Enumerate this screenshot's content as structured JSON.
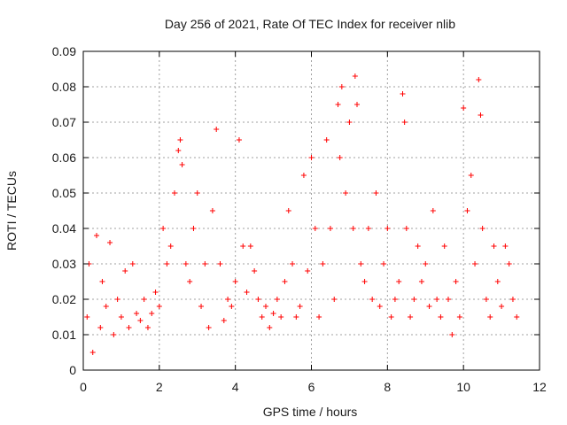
{
  "chart_data": {
    "type": "scatter",
    "title": "Day 256 of 2021, Rate Of TEC Index for receiver nlib",
    "xlabel": "GPS time / hours",
    "ylabel": "ROTI / TECUs",
    "xlim": [
      0,
      12
    ],
    "ylim": [
      0,
      0.09
    ],
    "x_ticks": [
      0,
      2,
      4,
      6,
      8,
      10,
      12
    ],
    "x_tick_labels": [
      "0",
      "2",
      "4",
      "6",
      "8",
      "10",
      "12"
    ],
    "y_ticks": [
      0,
      0.01,
      0.02,
      0.03,
      0.04,
      0.05,
      0.06,
      0.07,
      0.08,
      0.09
    ],
    "y_tick_labels": [
      "0",
      "0.01",
      "0.02",
      "0.03",
      "0.04",
      "0.05",
      "0.06",
      "0.07",
      "0.08",
      "0.09"
    ],
    "grid": true,
    "marker": "+",
    "marker_color": "#ff0000",
    "x_data_range": [
      0,
      11.5
    ],
    "series": [
      {
        "name": "ROTI",
        "x": [
          0.1,
          0.15,
          0.25,
          0.35,
          0.45,
          0.5,
          0.6,
          0.7,
          0.8,
          0.9,
          1.0,
          1.1,
          1.2,
          1.3,
          1.4,
          1.5,
          1.6,
          1.7,
          1.8,
          1.9,
          2.0,
          2.1,
          2.2,
          2.3,
          2.4,
          2.5,
          2.55,
          2.6,
          2.7,
          2.8,
          2.9,
          3.0,
          3.1,
          3.2,
          3.3,
          3.4,
          3.5,
          3.6,
          3.7,
          3.8,
          3.9,
          4.0,
          4.1,
          4.2,
          4.3,
          4.4,
          4.5,
          4.6,
          4.7,
          4.8,
          4.9,
          5.0,
          5.1,
          5.2,
          5.3,
          5.4,
          5.5,
          5.6,
          5.7,
          5.8,
          5.9,
          6.0,
          6.1,
          6.2,
          6.3,
          6.4,
          6.5,
          6.6,
          6.7,
          6.75,
          6.8,
          6.9,
          7.0,
          7.1,
          7.15,
          7.2,
          7.3,
          7.4,
          7.5,
          7.6,
          7.7,
          7.8,
          7.9,
          8.0,
          8.1,
          8.2,
          8.3,
          8.4,
          8.45,
          8.5,
          8.6,
          8.7,
          8.8,
          8.9,
          9.0,
          9.1,
          9.2,
          9.3,
          9.4,
          9.5,
          9.6,
          9.7,
          9.8,
          9.9,
          10.0,
          10.1,
          10.2,
          10.3,
          10.4,
          10.45,
          10.5,
          10.6,
          10.7,
          10.8,
          10.9,
          11.0,
          11.1,
          11.2,
          11.3,
          11.4
        ],
        "y": [
          0.015,
          0.03,
          0.005,
          0.038,
          0.012,
          0.025,
          0.018,
          0.036,
          0.01,
          0.02,
          0.015,
          0.028,
          0.012,
          0.03,
          0.016,
          0.014,
          0.02,
          0.012,
          0.016,
          0.022,
          0.018,
          0.04,
          0.03,
          0.035,
          0.05,
          0.062,
          0.065,
          0.058,
          0.03,
          0.025,
          0.04,
          0.05,
          0.018,
          0.03,
          0.012,
          0.045,
          0.068,
          0.03,
          0.014,
          0.02,
          0.018,
          0.025,
          0.065,
          0.035,
          0.022,
          0.035,
          0.028,
          0.02,
          0.015,
          0.018,
          0.012,
          0.016,
          0.02,
          0.015,
          0.025,
          0.045,
          0.03,
          0.015,
          0.018,
          0.055,
          0.028,
          0.06,
          0.04,
          0.015,
          0.03,
          0.065,
          0.04,
          0.02,
          0.075,
          0.06,
          0.08,
          0.05,
          0.07,
          0.04,
          0.083,
          0.075,
          0.03,
          0.025,
          0.04,
          0.02,
          0.05,
          0.018,
          0.03,
          0.04,
          0.015,
          0.02,
          0.025,
          0.078,
          0.07,
          0.04,
          0.015,
          0.02,
          0.035,
          0.025,
          0.03,
          0.018,
          0.045,
          0.02,
          0.015,
          0.035,
          0.02,
          0.01,
          0.025,
          0.015,
          0.074,
          0.045,
          0.055,
          0.03,
          0.082,
          0.072,
          0.04,
          0.02,
          0.015,
          0.035,
          0.025,
          0.018,
          0.035,
          0.03,
          0.02,
          0.015
        ]
      }
    ]
  }
}
